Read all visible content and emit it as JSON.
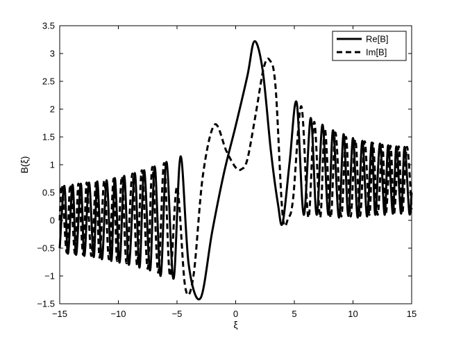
{
  "chart_data": {
    "type": "line",
    "xlabel": "ξ",
    "ylabel": "B(ξ)",
    "xlim": [
      -15,
      15
    ],
    "ylim": [
      -1.5,
      3.5
    ],
    "x_ticks": [
      -15,
      -10,
      -5,
      0,
      5,
      10,
      15
    ],
    "x_tick_labels": [
      "−15",
      "−10",
      "−5",
      "0",
      "5",
      "10",
      "15"
    ],
    "y_ticks": [
      -1.5,
      -1,
      -0.5,
      0,
      0.5,
      1,
      1.5,
      2,
      2.5,
      3,
      3.5
    ],
    "y_tick_labels": [
      "−1.5",
      "−1",
      "−0.5",
      "0",
      "0.5",
      "1",
      "1.5",
      "2",
      "2.5",
      "3",
      "3.5"
    ],
    "grid": false,
    "legend_position": "top-right",
    "series_color": "#000000",
    "series": [
      {
        "name": "Re[B]",
        "style": "solid",
        "x": [
          -15.0,
          -14.6,
          -14.3,
          -13.9,
          -13.6,
          -13.2,
          -12.9,
          -12.5,
          -12.1,
          -11.8,
          -11.4,
          -11.0,
          -10.6,
          -10.3,
          -9.9,
          -9.5,
          -9.1,
          -8.6,
          -8.2,
          -7.8,
          -7.3,
          -6.9,
          -6.4,
          -5.9,
          -5.3,
          -4.7,
          -4.0,
          -3.0,
          -2.0,
          -1.0,
          0.0,
          1.0,
          1.6,
          2.3,
          3.0,
          3.6,
          4.0,
          4.6,
          5.2,
          5.8,
          6.4,
          6.9,
          7.4,
          7.9,
          8.3,
          8.8,
          9.2,
          9.6,
          10.0,
          10.4,
          10.8,
          11.2,
          11.6,
          11.9,
          12.3,
          12.7,
          13.0,
          13.4,
          13.7,
          14.1,
          14.4,
          14.8,
          15.0
        ],
        "y": [
          -0.5,
          0.62,
          -0.6,
          0.64,
          -0.62,
          0.66,
          -0.64,
          0.68,
          -0.66,
          0.7,
          -0.7,
          0.72,
          -0.73,
          0.76,
          -0.76,
          0.8,
          -0.8,
          0.85,
          -0.85,
          0.9,
          -0.9,
          0.97,
          -1.0,
          1.05,
          -1.05,
          1.15,
          -0.8,
          -1.4,
          -0.2,
          0.85,
          1.7,
          2.6,
          3.22,
          2.7,
          1.25,
          0.3,
          -0.05,
          1.05,
          2.12,
          0.1,
          1.84,
          0.1,
          1.72,
          0.1,
          1.62,
          0.05,
          1.55,
          0.08,
          1.48,
          0.05,
          1.43,
          0.07,
          1.4,
          0.1,
          1.38,
          0.1,
          1.35,
          0.12,
          1.33,
          0.12,
          1.32,
          0.13,
          0.5
        ]
      },
      {
        "name": "Im[B]",
        "style": "dashed",
        "x": [
          -15.0,
          -14.8,
          -14.4,
          -14.1,
          -13.7,
          -13.4,
          -13.0,
          -12.7,
          -12.3,
          -11.9,
          -11.6,
          -11.2,
          -10.8,
          -10.4,
          -10.1,
          -9.7,
          -9.3,
          -8.8,
          -8.4,
          -8.0,
          -7.5,
          -7.1,
          -6.6,
          -6.1,
          -5.6,
          -5.0,
          -4.3,
          -3.6,
          -2.8,
          -1.8,
          -0.8,
          0.0,
          0.5,
          1.0,
          1.7,
          2.4,
          2.9,
          3.4,
          4.0,
          4.5,
          4.9,
          5.6,
          6.2,
          6.7,
          7.2,
          7.6,
          8.1,
          8.5,
          9.0,
          9.4,
          9.8,
          10.2,
          10.6,
          11.0,
          11.4,
          11.7,
          12.1,
          12.5,
          12.8,
          13.2,
          13.5,
          13.9,
          14.2,
          14.6,
          15.0
        ],
        "y": [
          0.0,
          0.62,
          -0.58,
          0.64,
          -0.6,
          0.66,
          -0.62,
          0.68,
          -0.64,
          0.7,
          -0.67,
          0.72,
          -0.7,
          0.75,
          -0.73,
          0.79,
          -0.77,
          0.84,
          -0.81,
          0.9,
          -0.87,
          0.96,
          -0.94,
          1.03,
          -1.0,
          0.6,
          -1.2,
          -1.0,
          0.8,
          1.72,
          1.25,
          0.95,
          0.92,
          1.1,
          1.9,
          2.75,
          2.88,
          2.4,
          0.1,
          0.05,
          0.4,
          2.05,
          0.05,
          1.77,
          0.05,
          1.65,
          0.05,
          1.58,
          0.07,
          1.5,
          0.07,
          1.45,
          0.08,
          1.42,
          0.1,
          1.39,
          0.1,
          1.36,
          0.12,
          1.34,
          0.12,
          1.33,
          0.13,
          1.32,
          0.2
        ]
      }
    ]
  }
}
